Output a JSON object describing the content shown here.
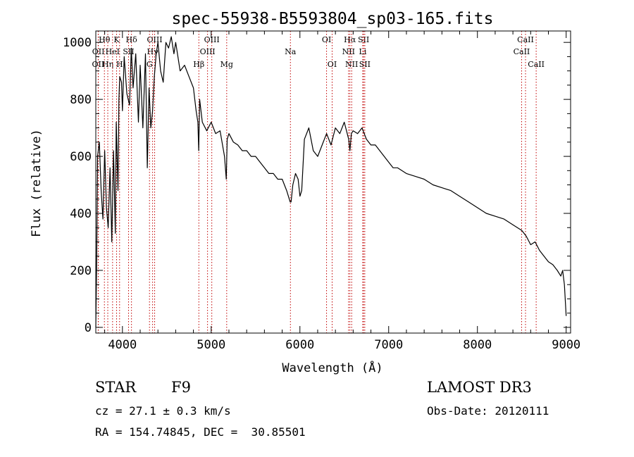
{
  "chart_data": {
    "type": "line",
    "title": "spec-55938-B5593804_sp03-165.fits",
    "xlabel": "Wavelength (Å)",
    "ylabel": "Flux (relative)",
    "xlim": [
      3700,
      9050
    ],
    "ylim": [
      -20,
      1040
    ],
    "xticks": [
      4000,
      5000,
      6000,
      7000,
      8000,
      9000
    ],
    "yticks": [
      0,
      200,
      400,
      600,
      800,
      1000
    ],
    "series": [
      {
        "x": [
          3700,
          3710,
          3720,
          3740,
          3760,
          3780,
          3800,
          3820,
          3840,
          3860,
          3880,
          3900,
          3920,
          3930,
          3950,
          3960,
          3970,
          3990,
          4000,
          4020,
          4050,
          4080,
          4100,
          4120,
          4150,
          4180,
          4200,
          4230,
          4260,
          4280,
          4300,
          4320,
          4340,
          4360,
          4380,
          4400,
          4430,
          4460,
          4490,
          4520,
          4550,
          4580,
          4600,
          4650,
          4700,
          4750,
          4800,
          4830,
          4850,
          4860,
          4870,
          4900,
          4950,
          5000,
          5050,
          5100,
          5150,
          5170,
          5180,
          5200,
          5250,
          5300,
          5350,
          5400,
          5450,
          5500,
          5550,
          5600,
          5650,
          5700,
          5750,
          5800,
          5850,
          5870,
          5890,
          5900,
          5920,
          5950,
          5980,
          6000,
          6020,
          6050,
          6100,
          6150,
          6200,
          6250,
          6300,
          6350,
          6400,
          6450,
          6500,
          6550,
          6563,
          6580,
          6600,
          6650,
          6700,
          6750,
          6800,
          6850,
          6900,
          6950,
          7000,
          7050,
          7100,
          7200,
          7300,
          7400,
          7500,
          7600,
          7700,
          7800,
          7900,
          8000,
          8100,
          8200,
          8300,
          8400,
          8500,
          8550,
          8600,
          8650,
          8700,
          8750,
          8800,
          8850,
          8900,
          8940,
          8960,
          8980,
          9000
        ],
        "y": [
          0,
          250,
          600,
          650,
          480,
          380,
          620,
          420,
          350,
          560,
          300,
          620,
          330,
          720,
          480,
          800,
          880,
          860,
          760,
          950,
          820,
          780,
          980,
          840,
          960,
          720,
          920,
          700,
          960,
          560,
          840,
          700,
          760,
          880,
          960,
          1000,
          900,
          860,
          1000,
          980,
          1020,
          960,
          1000,
          900,
          920,
          880,
          840,
          760,
          720,
          620,
          800,
          720,
          690,
          720,
          680,
          690,
          600,
          520,
          660,
          680,
          650,
          640,
          620,
          620,
          600,
          600,
          580,
          560,
          540,
          540,
          520,
          520,
          480,
          460,
          440,
          440,
          500,
          540,
          520,
          460,
          480,
          660,
          700,
          620,
          600,
          640,
          680,
          640,
          700,
          680,
          720,
          660,
          620,
          680,
          690,
          680,
          700,
          660,
          640,
          640,
          620,
          600,
          580,
          560,
          560,
          540,
          530,
          520,
          500,
          490,
          480,
          460,
          440,
          420,
          400,
          390,
          380,
          360,
          340,
          320,
          290,
          300,
          270,
          250,
          230,
          220,
          200,
          180,
          200,
          150,
          40
        ]
      }
    ],
    "line_markers": [
      {
        "label": "OII",
        "wl": 3727,
        "row": 2
      },
      {
        "label": "OII",
        "wl": 3729,
        "row": 1
      },
      {
        "label": "Hθ",
        "wl": 3797,
        "row": 0
      },
      {
        "label": "Hη",
        "wl": 3835,
        "row": 2
      },
      {
        "label": "HeI",
        "wl": 3889,
        "row": 1
      },
      {
        "label": "K",
        "wl": 3934,
        "row": 0
      },
      {
        "label": "SII",
        "wl": 4069,
        "row": 1
      },
      {
        "label": "H",
        "wl": 3968,
        "row": 2
      },
      {
        "label": "Hδ",
        "wl": 4102,
        "row": 0
      },
      {
        "label": "OIII",
        "wl": 4363,
        "row": 0
      },
      {
        "label": "Hγ",
        "wl": 4340,
        "row": 1
      },
      {
        "label": "G",
        "wl": 4305,
        "row": 2
      },
      {
        "label": "Hβ",
        "wl": 4861,
        "row": 2
      },
      {
        "label": "OIII",
        "wl": 4959,
        "row": 1
      },
      {
        "label": "OIII",
        "wl": 5007,
        "row": 0
      },
      {
        "label": "Mg",
        "wl": 5175,
        "row": 2
      },
      {
        "label": "Na",
        "wl": 5893,
        "row": 1
      },
      {
        "label": "OI",
        "wl": 6300,
        "row": 0
      },
      {
        "label": "OI",
        "wl": 6363,
        "row": 2
      },
      {
        "label": "Hα",
        "wl": 6563,
        "row": 0
      },
      {
        "label": "NII",
        "wl": 6548,
        "row": 1
      },
      {
        "label": "NII",
        "wl": 6583,
        "row": 2
      },
      {
        "label": "SII",
        "wl": 6717,
        "row": 0
      },
      {
        "label": "Li",
        "wl": 6708,
        "row": 1
      },
      {
        "label": "SII",
        "wl": 6731,
        "row": 2
      },
      {
        "label": "CaII",
        "wl": 8542,
        "row": 0
      },
      {
        "label": "CaII",
        "wl": 8498,
        "row": 1
      },
      {
        "label": "CaII",
        "wl": 8662,
        "row": 2
      }
    ]
  },
  "footer": {
    "object_type": "STAR",
    "subclass": "F9",
    "survey": "LAMOST DR3",
    "cz": "cz = 27.1 ± 0.3 km/s",
    "obs_date": "Obs-Date: 20120111",
    "coords": "RA = 154.74845, DEC =  30.85501"
  },
  "colors": {
    "spectrum": "#000000",
    "marker_line": "#c00000",
    "axes": "#000000"
  }
}
